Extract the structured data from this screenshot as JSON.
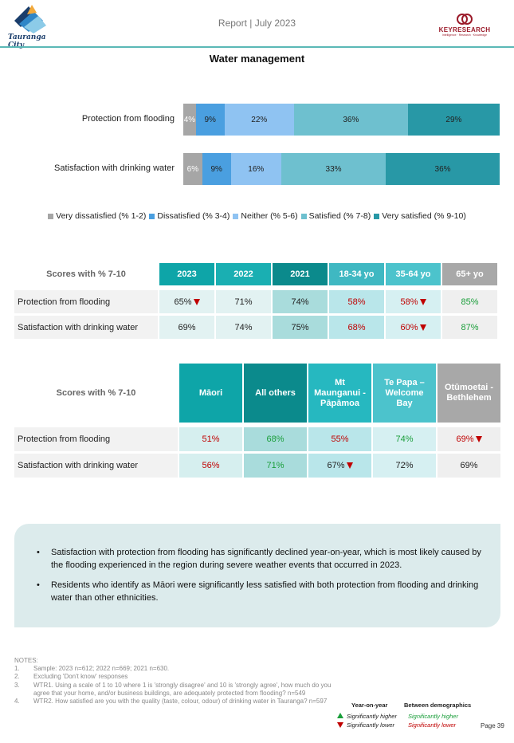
{
  "header": {
    "title": "Report | July 2023",
    "tauranga_logo_text": "Tauranga City",
    "keyresearch_logo_text": "KEYRESEARCH",
    "keyresearch_tagline": "Intelligence · Research · Knowledge"
  },
  "section_title": "Water management",
  "colors": {
    "very_dissatisfied": "#a6a6a6",
    "dissatisfied": "#4a9fe0",
    "neither": "#8fc3f2",
    "satisfied": "#6ec0cf",
    "very_satisfied": "#2898a6",
    "teal_dark": "#0b8a8c",
    "teal": "#0ea5a8",
    "teal_mid": "#26b8c0",
    "teal_light": "#4cc3cc",
    "grey_header": "#a8a8a8",
    "sig_lower": "#c00000",
    "sig_higher": "#1a9e3a"
  },
  "chart_data": {
    "type": "bar",
    "orientation": "horizontal-stacked",
    "categories": [
      "Protection from flooding",
      "Satisfaction with drinking water"
    ],
    "series": [
      {
        "name": "Very dissatisfied (% 1-2)",
        "values": [
          4,
          6
        ],
        "labels": [
          "4%",
          "6%"
        ]
      },
      {
        "name": "Dissatisfied (% 3-4)",
        "values": [
          9,
          9
        ],
        "labels": [
          "9%",
          "9%"
        ]
      },
      {
        "name": "Neither (% 5-6)",
        "values": [
          22,
          16
        ],
        "labels": [
          "22%",
          "16%"
        ]
      },
      {
        "name": "Satisfied (% 7-8)",
        "values": [
          36,
          33
        ],
        "labels": [
          "36%",
          "33%"
        ]
      },
      {
        "name": "Very satisfied (% 9-10)",
        "values": [
          29,
          36
        ],
        "labels": [
          "29%",
          "36%"
        ]
      }
    ],
    "xlim": [
      0,
      100
    ],
    "legend": "bottom"
  },
  "table1": {
    "header_label": "Scores with % 7-10",
    "columns": [
      "2023",
      "2022",
      "2021",
      "18-34 yo",
      "35-64 yo",
      "65+ yo"
    ],
    "rows": [
      {
        "label": "Protection from flooding",
        "cells": [
          {
            "text": "65%",
            "sig": "down-yoy"
          },
          {
            "text": "71%",
            "sig": ""
          },
          {
            "text": "74%",
            "sig": ""
          },
          {
            "text": "58%",
            "sig": "lower-demo"
          },
          {
            "text": "58%",
            "sig": "lower-demo-down-yoy"
          },
          {
            "text": "85%",
            "sig": "higher-demo"
          }
        ]
      },
      {
        "label": "Satisfaction with drinking water",
        "cells": [
          {
            "text": "69%",
            "sig": ""
          },
          {
            "text": "74%",
            "sig": ""
          },
          {
            "text": "75%",
            "sig": ""
          },
          {
            "text": "68%",
            "sig": "lower-demo"
          },
          {
            "text": "60%",
            "sig": "lower-demo-down-yoy"
          },
          {
            "text": "87%",
            "sig": "higher-demo"
          }
        ]
      }
    ]
  },
  "table2": {
    "header_label": "Scores with % 7-10",
    "columns": [
      "Māori",
      "All others",
      "Mt Maunganui - Pāpāmoa",
      "Te Papa – Welcome Bay",
      "Otūmoetai - Bethlehem"
    ],
    "rows": [
      {
        "label": "Protection from flooding",
        "cells": [
          {
            "text": "51%",
            "sig": "lower-demo"
          },
          {
            "text": "68%",
            "sig": "higher-demo"
          },
          {
            "text": "55%",
            "sig": "lower-demo"
          },
          {
            "text": "74%",
            "sig": "higher-demo"
          },
          {
            "text": "69%",
            "sig": "lower-demo-down-yoy"
          }
        ]
      },
      {
        "label": "Satisfaction with drinking water",
        "cells": [
          {
            "text": "56%",
            "sig": "lower-demo"
          },
          {
            "text": "71%",
            "sig": "higher-demo"
          },
          {
            "text": "67%",
            "sig": "down-yoy"
          },
          {
            "text": "72%",
            "sig": ""
          },
          {
            "text": "69%",
            "sig": ""
          }
        ]
      }
    ]
  },
  "summary": [
    "Satisfaction with protection from flooding has significantly declined year-on-year, which is most likely caused by the flooding experienced in the region during severe weather events that occurred in 2023.",
    "Residents who identify as Māori were significantly less satisfied with both protection from flooding and drinking water than other ethnicities."
  ],
  "notes": {
    "heading": "NOTES:",
    "items": [
      {
        "num": "1.",
        "text": "Sample: 2023 n=612; 2022 n=669; 2021 n=630."
      },
      {
        "num": "2.",
        "text": "Excluding 'Don't know' responses"
      },
      {
        "num": "3.",
        "text": "WTR1.  Using a scale of 1 to 10 where 1 is 'strongly disagree' and 10 is 'strongly agree', how much do you agree that your home, and/or business buildings, are adequately protected from flooding? n=549"
      },
      {
        "num": "4.",
        "text": "WTR2.  How satisfied are you with the quality (taste, colour, odour) of drinking water in Tauranga? n=597"
      }
    ]
  },
  "key": {
    "yoy_heading": "Year-on-year",
    "demo_heading": "Between demographics",
    "higher": "Significantly higher",
    "lower": "Significantly lower"
  },
  "page_number": "Page 39"
}
